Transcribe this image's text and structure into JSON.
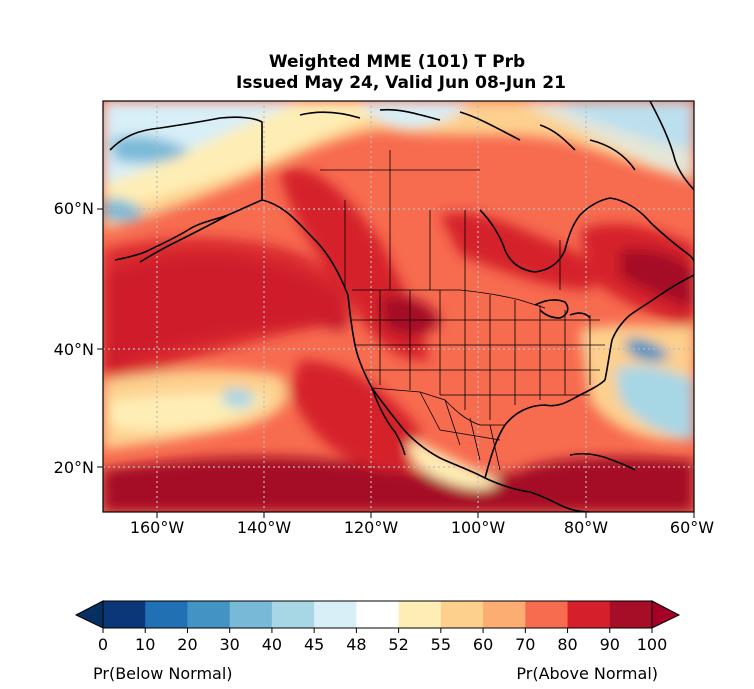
{
  "title": {
    "line1": "Weighted MME (101) T Prb",
    "line2": "Issued May 24, Valid Jun 08-Jun 21"
  },
  "map": {
    "lat_labels": [
      "60°N",
      "40°N",
      "20°N"
    ],
    "lon_labels": [
      "160°W",
      "140°W",
      "120°W",
      "100°W",
      "80°W",
      "60°W"
    ],
    "ocean_color": "#ff7f5e"
  },
  "colorbar": {
    "ticks": [
      "0",
      "10",
      "20",
      "30",
      "40",
      "45",
      "48",
      "52",
      "55",
      "60",
      "70",
      "80",
      "90",
      "100"
    ],
    "colors": [
      "#0b3779",
      "#2170b4",
      "#4393c4",
      "#79b9d8",
      "#a7d6e5",
      "#d8eff8",
      "#ffffff",
      "#feeeb5",
      "#fdd08e",
      "#fcad72",
      "#f76b4f",
      "#d5202b",
      "#a50e26"
    ],
    "under_color": "#053061",
    "over_color": "#a50026",
    "left_label": "Pr(Below Normal)",
    "right_label": "Pr(Above Normal)"
  }
}
